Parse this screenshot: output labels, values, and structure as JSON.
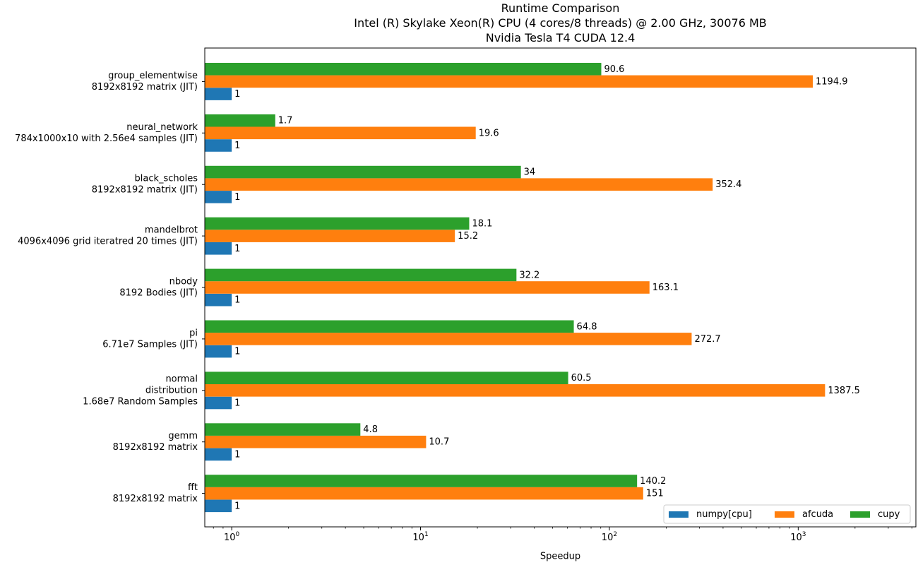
{
  "chart_data": {
    "type": "bar",
    "orientation": "horizontal",
    "title": [
      "Runtime Comparison",
      "Intel (R) Skylake Xeon(R) CPU (4 cores/8 threads) @ 2.00 GHz, 30076 MB",
      "Nvidia Tesla T4 CUDA 12.4"
    ],
    "xlabel": "Speedup",
    "ylabel": "",
    "xscale": "log",
    "xlim": [
      0.72,
      4200
    ],
    "grid": false,
    "legend_position": "lower-right",
    "categories": [
      [
        "group_elementwise",
        "8192x8192 matrix (JIT)"
      ],
      [
        "neural_network",
        "784x1000x10 with 2.56e4 samples (JIT)"
      ],
      [
        "black_scholes",
        "8192x8192 matrix (JIT)"
      ],
      [
        "mandelbrot",
        "4096x4096 grid iteratred 20 times (JIT)"
      ],
      [
        "nbody",
        "8192 Bodies (JIT)"
      ],
      [
        "pi",
        "6.71e7 Samples (JIT)"
      ],
      [
        "normal",
        "distribution",
        "1.68e7 Random Samples"
      ],
      [
        "gemm",
        "8192x8192 matrix"
      ],
      [
        "fft",
        "8192x8192 matrix"
      ]
    ],
    "series": [
      {
        "name": "numpy[cpu]",
        "color": "#1f77b4",
        "values": [
          1,
          1,
          1,
          1,
          1,
          1,
          1,
          1,
          1
        ],
        "labels": [
          "1",
          "1",
          "1",
          "1",
          "1",
          "1",
          "1",
          "1",
          "1"
        ]
      },
      {
        "name": "afcuda",
        "color": "#ff7f0e",
        "values": [
          1194.9,
          19.6,
          352.4,
          15.2,
          163.1,
          272.7,
          1387.5,
          10.7,
          151
        ],
        "labels": [
          "1194.9",
          "19.6",
          "352.4",
          "15.2",
          "163.1",
          "272.7",
          "1387.5",
          "10.7",
          "151"
        ]
      },
      {
        "name": "cupy",
        "color": "#2ca02c",
        "values": [
          90.6,
          1.7,
          34,
          18.1,
          32.2,
          64.8,
          60.5,
          4.8,
          140.2
        ],
        "labels": [
          "90.6",
          "1.7",
          "34",
          "18.1",
          "32.2",
          "64.8",
          "60.5",
          "4.8",
          "140.2"
        ]
      }
    ],
    "xticks": [
      {
        "value": 1,
        "base": "10",
        "exp": "0"
      },
      {
        "value": 10,
        "base": "10",
        "exp": "1"
      },
      {
        "value": 100,
        "base": "10",
        "exp": "2"
      },
      {
        "value": 1000,
        "base": "10",
        "exp": "3"
      }
    ]
  }
}
